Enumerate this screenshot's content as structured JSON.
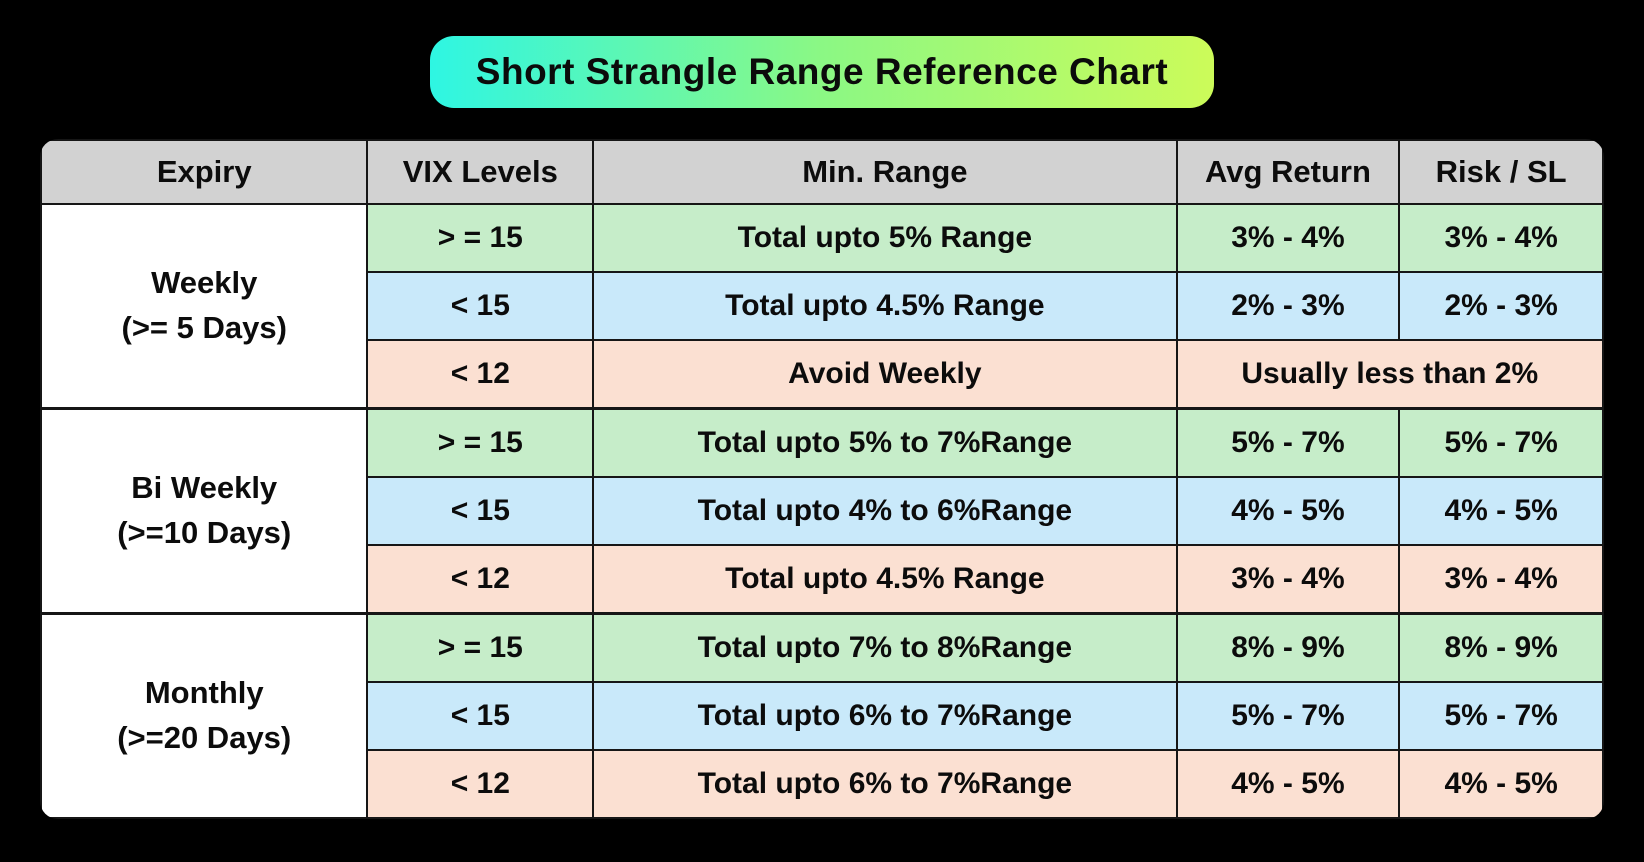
{
  "title": "Short Strangle Range Reference Chart",
  "colors": {
    "background": "#000000",
    "banner_gradient_left": "#2ef6e3",
    "banner_gradient_right": "#ccfb59",
    "header_bg": "#d2d2d2",
    "row_green": "#c6edc9",
    "row_blue": "#c9e9fa",
    "row_pink": "#fbe0d2",
    "expiry_bg": "#ffffff",
    "text": "#0c0c0c"
  },
  "table": {
    "headers": [
      "Expiry",
      "VIX Levels",
      "Min. Range",
      "Avg Return",
      "Risk / SL"
    ],
    "groups": [
      {
        "expiry": "Weekly",
        "expiry_sub": "(>= 5 Days)",
        "rows": [
          {
            "vix": "> = 15",
            "range": "Total upto 5% Range",
            "avg": "3% - 4%",
            "risk": "3% - 4%",
            "tone": "green"
          },
          {
            "vix": "< 15",
            "range": "Total upto 4.5% Range",
            "avg": "2% - 3%",
            "risk": "2% - 3%",
            "tone": "blue"
          },
          {
            "vix": "< 12",
            "range": "Avoid Weekly",
            "merged": "Usually less than 2%",
            "tone": "pink"
          }
        ]
      },
      {
        "expiry": "Bi Weekly",
        "expiry_sub": "(>=10 Days)",
        "rows": [
          {
            "vix": "> = 15",
            "range": "Total upto 5% to 7%Range",
            "avg": "5% - 7%",
            "risk": "5% - 7%",
            "tone": "green"
          },
          {
            "vix": "< 15",
            "range": "Total upto 4% to 6%Range",
            "avg": "4% - 5%",
            "risk": "4% - 5%",
            "tone": "blue"
          },
          {
            "vix": "< 12",
            "range": "Total upto 4.5% Range",
            "avg": "3% - 4%",
            "risk": "3% - 4%",
            "tone": "pink"
          }
        ]
      },
      {
        "expiry": "Monthly",
        "expiry_sub": "(>=20 Days)",
        "rows": [
          {
            "vix": "> = 15",
            "range": "Total upto 7% to 8%Range",
            "avg": "8% - 9%",
            "risk": "8% - 9%",
            "tone": "green"
          },
          {
            "vix": "< 15",
            "range": "Total upto 6% to 7%Range",
            "avg": "5% - 7%",
            "risk": "5% - 7%",
            "tone": "blue"
          },
          {
            "vix": "< 12",
            "range": "Total upto 6% to 7%Range",
            "avg": "4% - 5%",
            "risk": "4% - 5%",
            "tone": "pink"
          }
        ]
      }
    ]
  },
  "chart_data": {
    "type": "table",
    "title": "Short Strangle Range Reference Chart",
    "columns": [
      "Expiry",
      "VIX Levels",
      "Min. Range",
      "Avg Return",
      "Risk / SL"
    ],
    "rows": [
      [
        "Weekly (>= 5 Days)",
        "> = 15",
        "Total upto 5% Range",
        "3% - 4%",
        "3% - 4%"
      ],
      [
        "Weekly (>= 5 Days)",
        "< 15",
        "Total upto 4.5% Range",
        "2% - 3%",
        "2% - 3%"
      ],
      [
        "Weekly (>= 5 Days)",
        "< 12",
        "Avoid Weekly",
        "Usually less than 2%",
        "Usually less than 2%"
      ],
      [
        "Bi Weekly (>=10 Days)",
        "> = 15",
        "Total upto 5% to 7%Range",
        "5% - 7%",
        "5% - 7%"
      ],
      [
        "Bi Weekly (>=10 Days)",
        "< 15",
        "Total upto 4% to 6%Range",
        "4% - 5%",
        "4% - 5%"
      ],
      [
        "Bi Weekly (>=10 Days)",
        "< 12",
        "Total upto 4.5% Range",
        "3% - 4%",
        "3% - 4%"
      ],
      [
        "Monthly (>=20 Days)",
        "> = 15",
        "Total upto 7% to 8%Range",
        "8% - 9%",
        "8% - 9%"
      ],
      [
        "Monthly (>=20 Days)",
        "< 15",
        "Total upto 6% to 7%Range",
        "5% - 7%",
        "5% - 7%"
      ],
      [
        "Monthly (>=20 Days)",
        "< 12",
        "Total upto 6% to 7%Range",
        "4% - 5%",
        "4% - 5%"
      ]
    ]
  }
}
